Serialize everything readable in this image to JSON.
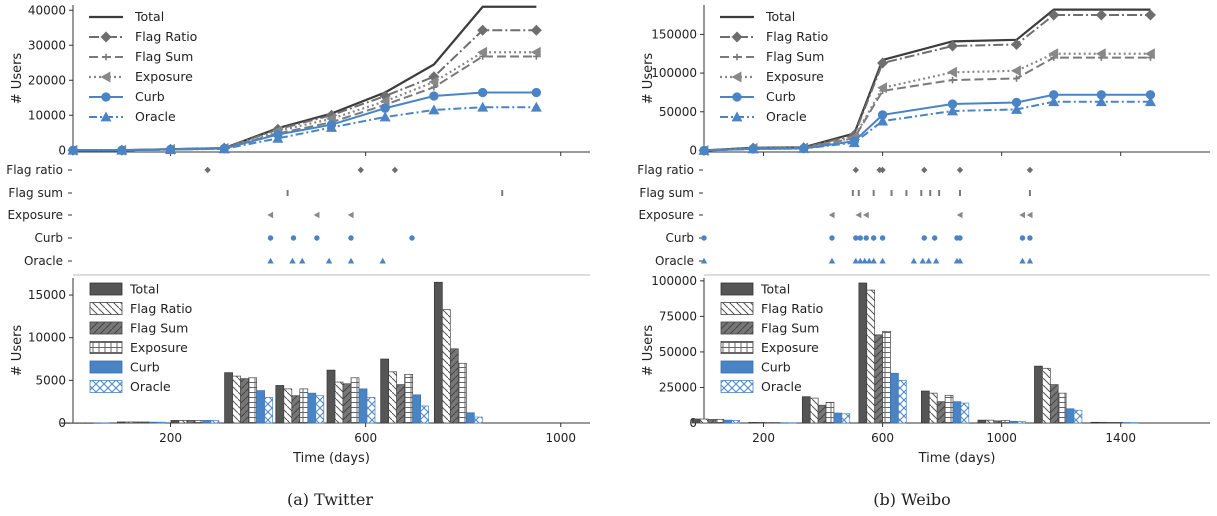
{
  "panels": [
    {
      "caption": "(a) Twitter",
      "chart_data": [
        {
          "type": "line",
          "ylabel": "# Users",
          "ylim": [
            -500,
            41500
          ],
          "xlim": [
            0,
            1060
          ],
          "yticks": [
            0,
            10000,
            20000,
            30000,
            40000
          ],
          "xticks": [
            200,
            600,
            1000
          ],
          "x": [
            0,
            100,
            200,
            310,
            420,
            530,
            640,
            740,
            840,
            950
          ],
          "series": [
            {
              "name": "Total",
              "style": "total",
              "values": [
                0,
                0,
                300,
                600,
                6300,
                10500,
                16500,
                24500,
                41000,
                41000
              ]
            },
            {
              "name": "Flag Ratio",
              "style": "flagratio",
              "values": [
                0,
                0,
                300,
                600,
                6000,
                10000,
                15500,
                21000,
                34300,
                34300
              ]
            },
            {
              "name": "Flag Sum",
              "style": "flagsum",
              "values": [
                0,
                0,
                200,
                500,
                4800,
                8000,
                13000,
                18000,
                26800,
                26800
              ]
            },
            {
              "name": "Exposure",
              "style": "exposure",
              "values": [
                0,
                0,
                250,
                550,
                5500,
                9000,
                14000,
                19500,
                28000,
                28000
              ]
            },
            {
              "name": "Curb",
              "style": "curb",
              "values": [
                0,
                0,
                200,
                500,
                4500,
                7300,
                12000,
                15500,
                16500,
                16500
              ]
            },
            {
              "name": "Oracle",
              "style": "oracle",
              "values": [
                0,
                0,
                200,
                400,
                3400,
                6500,
                9500,
                11500,
                12300,
                12300
              ]
            }
          ]
        },
        {
          "type": "scatter",
          "xlim": [
            0,
            1060
          ],
          "rows": [
            {
              "label": "Flag ratio",
              "style": "flagratio",
              "x": [
                276,
                590,
                660
              ]
            },
            {
              "label": "Flag sum",
              "style": "flagsum",
              "x": [
                440,
                880
              ]
            },
            {
              "label": "Exposure",
              "style": "exposure",
              "x": [
                405,
                500,
                570
              ]
            },
            {
              "label": "Curb",
              "style": "curb",
              "x": [
                405,
                452,
                500,
                570,
                695
              ]
            },
            {
              "label": "Oracle",
              "style": "oracle",
              "x": [
                405,
                450,
                470,
                525,
                570,
                635
              ]
            }
          ]
        },
        {
          "type": "bar",
          "ylabel": "# Users",
          "xlabel": "Time (days)",
          "ylim": [
            0,
            17000
          ],
          "xlim": [
            0,
            1060
          ],
          "yticks": [
            0,
            5000,
            10000,
            15000
          ],
          "xticks": [
            200,
            600,
            1000
          ],
          "x": [
            25,
            140,
            250,
            360,
            465,
            570,
            680,
            790
          ],
          "series": [
            {
              "name": "Total",
              "style": "total",
              "values": [
                20,
                120,
                300,
                5900,
                4400,
                6200,
                7500,
                16500
              ]
            },
            {
              "name": "Flag Ratio",
              "style": "flagratio",
              "values": [
                20,
                120,
                300,
                5500,
                4000,
                4800,
                6000,
                13300
              ]
            },
            {
              "name": "Flag Sum",
              "style": "flagsum",
              "values": [
                20,
                120,
                300,
                5200,
                3200,
                4600,
                4500,
                8700
              ]
            },
            {
              "name": "Exposure",
              "style": "exposure",
              "values": [
                20,
                120,
                300,
                5300,
                4000,
                5300,
                5700,
                7000
              ]
            },
            {
              "name": "Curb",
              "style": "curb",
              "values": [
                20,
                100,
                300,
                3800,
                3500,
                4000,
                3300,
                1200
              ]
            },
            {
              "name": "Oracle",
              "style": "oracle",
              "values": [
                20,
                100,
                300,
                3000,
                3200,
                3000,
                2000,
                700
              ]
            }
          ]
        }
      ]
    },
    {
      "caption": "(b) Weibo",
      "chart_data": [
        {
          "type": "line",
          "ylabel": "# Users",
          "ylim": [
            -2000,
            188000
          ],
          "xlim": [
            0,
            1700
          ],
          "yticks": [
            0,
            50000,
            100000,
            150000
          ],
          "xticks": [
            200,
            600,
            1000,
            1400
          ],
          "x": [
            0,
            165,
            335,
            505,
            600,
            835,
            1050,
            1175,
            1335,
            1500
          ],
          "series": [
            {
              "name": "Total",
              "style": "total",
              "values": [
                0,
                3500,
                4000,
                22000,
                117000,
                141000,
                143000,
                182000,
                182000,
                182000
              ]
            },
            {
              "name": "Flag Ratio",
              "style": "flagratio",
              "values": [
                0,
                3000,
                3500,
                20000,
                113000,
                135000,
                137000,
                175000,
                175000,
                175000
              ]
            },
            {
              "name": "Flag Sum",
              "style": "flagsum",
              "values": [
                0,
                2500,
                3000,
                16000,
                77000,
                91000,
                93000,
                120000,
                120000,
                120000
              ]
            },
            {
              "name": "Exposure",
              "style": "exposure",
              "values": [
                0,
                2700,
                3200,
                17000,
                81000,
                101000,
                103000,
                125000,
                125000,
                125000
              ]
            },
            {
              "name": "Curb",
              "style": "curb",
              "values": [
                0,
                2000,
                2500,
                12000,
                46000,
                60000,
                62000,
                72000,
                72000,
                72000
              ]
            },
            {
              "name": "Oracle",
              "style": "oracle",
              "values": [
                0,
                2000,
                2500,
                10000,
                38000,
                51000,
                53000,
                63000,
                63000,
                63000
              ]
            }
          ]
        },
        {
          "type": "scatter",
          "xlim": [
            0,
            1700
          ],
          "rows": [
            {
              "label": "Flag ratio",
              "style": "flagratio",
              "x": [
                510,
                590,
                600,
                740,
                860,
                1095
              ]
            },
            {
              "label": "Flag sum",
              "style": "flagsum",
              "x": [
                500,
                520,
                570,
                630,
                680,
                730,
                760,
                790,
                860,
                1095
              ]
            },
            {
              "label": "Exposure",
              "style": "exposure",
              "x": [
                430,
                520,
                545,
                860,
                1070,
                1095
              ]
            },
            {
              "label": "Curb",
              "style": "curb",
              "x": [
                0,
                430,
                510,
                525,
                545,
                570,
                600,
                740,
                775,
                850,
                860,
                1070,
                1095
              ]
            },
            {
              "label": "Oracle",
              "style": "oracle",
              "x": [
                0,
                430,
                510,
                525,
                540,
                555,
                570,
                600,
                705,
                735,
                755,
                780,
                850,
                860,
                1070,
                1095
              ]
            }
          ]
        },
        {
          "type": "bar",
          "ylabel": "# Users",
          "xlabel": "Time (days)",
          "ylim": [
            0,
            102000
          ],
          "xlim": [
            0,
            1700
          ],
          "yticks": [
            0,
            25000,
            50000,
            75000,
            100000
          ],
          "xticks": [
            200,
            600,
            1000,
            1400
          ],
          "x": [
            40,
            230,
            410,
            600,
            810,
            1000,
            1190,
            1380
          ],
          "series": [
            {
              "name": "Total",
              "style": "total",
              "values": [
                2800,
                400,
                18500,
                98500,
                22500,
                2000,
                40000,
                500
              ]
            },
            {
              "name": "Flag Ratio",
              "style": "flagratio",
              "values": [
                2800,
                400,
                17500,
                93500,
                21000,
                2000,
                38500,
                500
              ]
            },
            {
              "name": "Flag Sum",
              "style": "flagsum",
              "values": [
                2500,
                300,
                12500,
                62000,
                15000,
                1500,
                27000,
                400
              ]
            },
            {
              "name": "Exposure",
              "style": "exposure",
              "values": [
                2600,
                300,
                14500,
                64500,
                19500,
                1800,
                21000,
                400
              ]
            },
            {
              "name": "Curb",
              "style": "curb",
              "values": [
                2000,
                200,
                7000,
                35000,
                15000,
                1200,
                10000,
                300
              ]
            },
            {
              "name": "Oracle",
              "style": "oracle",
              "values": [
                1800,
                200,
                6500,
                30000,
                14000,
                1000,
                9000,
                300
              ]
            }
          ]
        }
      ]
    }
  ],
  "colors": {
    "total": "#3c3c3c",
    "flagratio": "#6e6e6e",
    "flagsum": "#7a7a7a",
    "exposure": "#888888",
    "curb": "#4a84c4",
    "oracle": "#4a84c4",
    "axis": "#333333"
  }
}
